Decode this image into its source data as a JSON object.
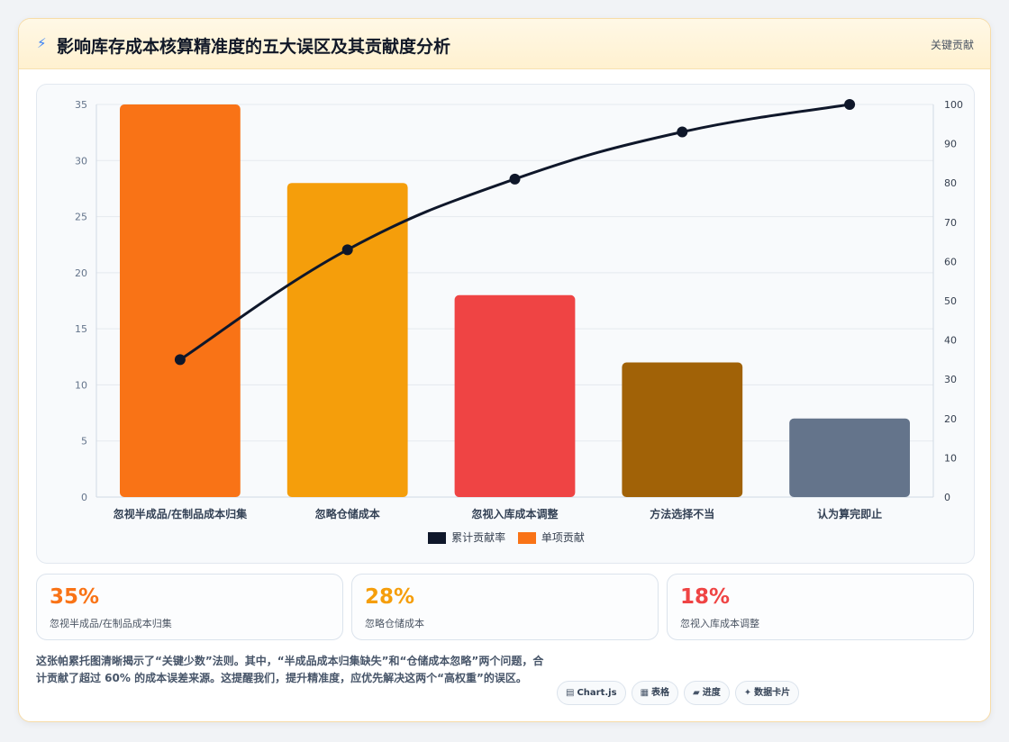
{
  "header": {
    "title": "影响库存成本核算精准度的五大误区及其贡献度分析",
    "right_label": "关键贡献",
    "icon": "lightning-icon"
  },
  "chart_data": {
    "type": "bar",
    "categories": [
      "忽视半成品/在制品成本归集",
      "忽略仓储成本",
      "忽视入库成本调整",
      "方法选择不当",
      "认为算完即止"
    ],
    "series": [
      {
        "name": "单项贡献",
        "type": "bar",
        "axis": "left",
        "values": [
          35,
          28,
          18,
          12,
          7
        ],
        "colors": [
          "#f97316",
          "#f59e0b",
          "#ef4444",
          "#a16207",
          "#64748b"
        ]
      },
      {
        "name": "累计贡献率",
        "type": "line",
        "axis": "right",
        "values": [
          35,
          63,
          81,
          93,
          100
        ],
        "color": "#0f172a"
      }
    ],
    "legend": [
      {
        "name": "累计贡献率",
        "color": "#0f172a"
      },
      {
        "name": "单项贡献",
        "color": "#f97316"
      }
    ],
    "y_left": {
      "lim": [
        0,
        35
      ],
      "ticks": [
        0,
        5,
        10,
        15,
        20,
        25,
        30,
        35
      ]
    },
    "y_right": {
      "lim": [
        0,
        100
      ],
      "ticks": [
        0,
        10,
        20,
        30,
        40,
        50,
        60,
        70,
        80,
        90,
        100
      ]
    },
    "grid": true,
    "legend_position": "bottom"
  },
  "stats": [
    {
      "value": "35%",
      "label": "忽视半成品/在制品成本归集",
      "color": "#f97316"
    },
    {
      "value": "28%",
      "label": "忽略仓储成本",
      "color": "#f59e0b"
    },
    {
      "value": "18%",
      "label": "忽视入库成本调整",
      "color": "#ef4444"
    }
  ],
  "summary": "这张帕累托图清晰揭示了“关键少数”法则。其中，“半成品成本归集缺失”和“仓储成本忽略”两个问题，合计贡献了超过 60% 的成本误差来源。这提醒我们，提升精准度，应优先解决这两个“高权重”的误区。",
  "tags": [
    {
      "icon": "▤",
      "label": "Chart.js"
    },
    {
      "icon": "▦",
      "label": "表格"
    },
    {
      "icon": "▰",
      "label": "进度"
    },
    {
      "icon": "✦",
      "label": "数据卡片"
    }
  ]
}
